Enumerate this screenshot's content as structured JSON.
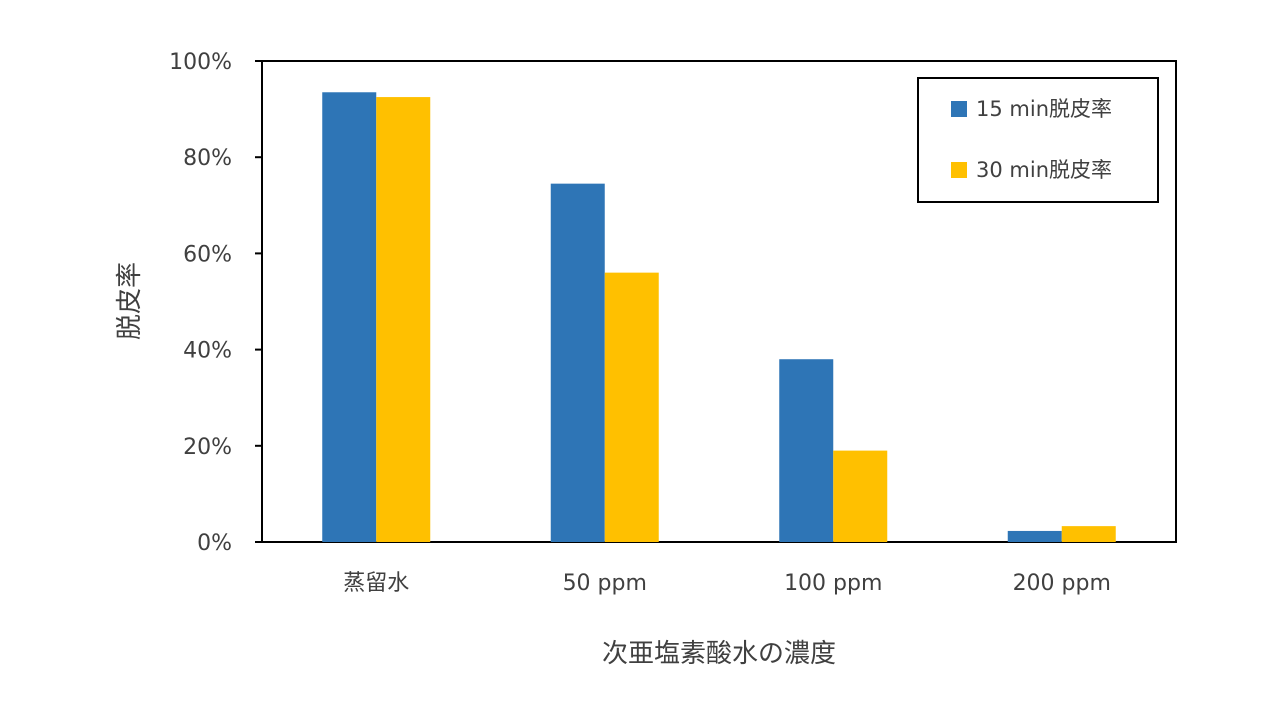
{
  "chart_data": {
    "type": "bar",
    "categories": [
      "蒸留水",
      "50 ppm",
      "100 ppm",
      "200 ppm"
    ],
    "series": [
      {
        "name": "15 min脱皮率",
        "values": [
          93.5,
          74.5,
          38,
          2.3
        ],
        "color": "#2E75B6"
      },
      {
        "name": "30 min脱皮率",
        "values": [
          92.5,
          56,
          19,
          3.3
        ],
        "color": "#FFC000"
      }
    ],
    "xlabel": "次亜塩素酸水の濃度",
    "ylabel": "脱皮率",
    "ylim": [
      0,
      100
    ],
    "yticks": [
      "0%",
      "20%",
      "40%",
      "60%",
      "80%",
      "100%"
    ],
    "ytick_values": [
      0,
      20,
      40,
      60,
      80,
      100
    ],
    "grid": false,
    "legend_position": "top-right"
  }
}
